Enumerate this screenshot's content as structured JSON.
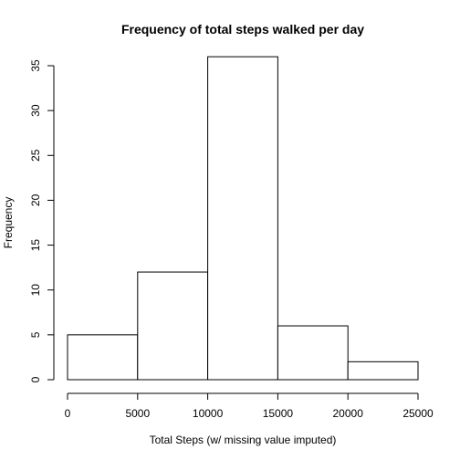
{
  "chart_data": {
    "type": "bar",
    "title": "Frequency of total steps walked per day",
    "xlabel": "Total Steps (w/ missing value imputed)",
    "ylabel": "Frequency",
    "bins": [
      {
        "start": 0,
        "end": 5000,
        "count": 5
      },
      {
        "start": 5000,
        "end": 10000,
        "count": 12
      },
      {
        "start": 10000,
        "end": 15000,
        "count": 36
      },
      {
        "start": 15000,
        "end": 20000,
        "count": 6
      },
      {
        "start": 20000,
        "end": 25000,
        "count": 2
      }
    ],
    "xlim": [
      0,
      25000
    ],
    "ylim": [
      0,
      35
    ],
    "x_ticks": [
      "0",
      "5000",
      "10000",
      "15000",
      "20000",
      "25000"
    ],
    "y_ticks": [
      "0",
      "5",
      "10",
      "15",
      "20",
      "25",
      "30",
      "35"
    ],
    "grid": false,
    "legend": "none"
  }
}
